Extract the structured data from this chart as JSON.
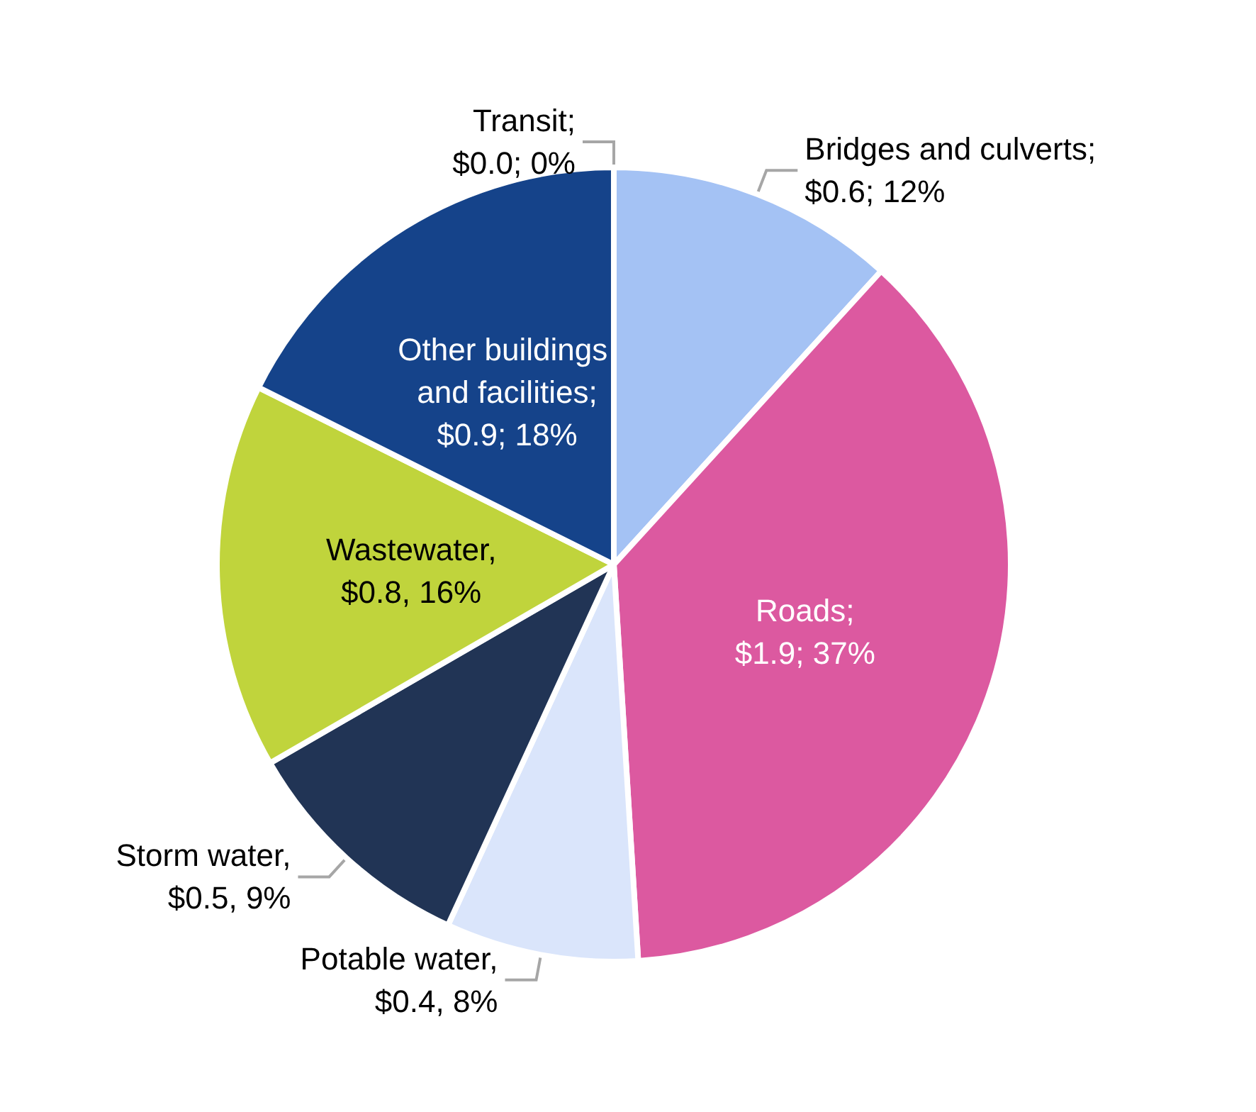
{
  "chart_data": {
    "type": "pie",
    "categories": [
      "Transit",
      "Bridges and culverts",
      "Roads",
      "Potable water",
      "Storm water",
      "Wastewater",
      "Other buildings and facilities"
    ],
    "values": [
      0.0,
      0.6,
      1.9,
      0.4,
      0.5,
      0.8,
      0.9
    ],
    "colors": [
      "#7f7f7f",
      "#a4c2f4",
      "#dc59a0",
      "#dae5fb",
      "#213455",
      "#c0d43c",
      "#15438a"
    ],
    "value_labels": [
      ";\n$0.0; 0%",
      ";\n$0.6; 12%",
      ";\n$1.9; 37%",
      ",\n$0.4, 8%",
      ",\n$0.5, 9%",
      ",\n$0.8, 16%",
      ";\n$0.9; 18%"
    ]
  }
}
